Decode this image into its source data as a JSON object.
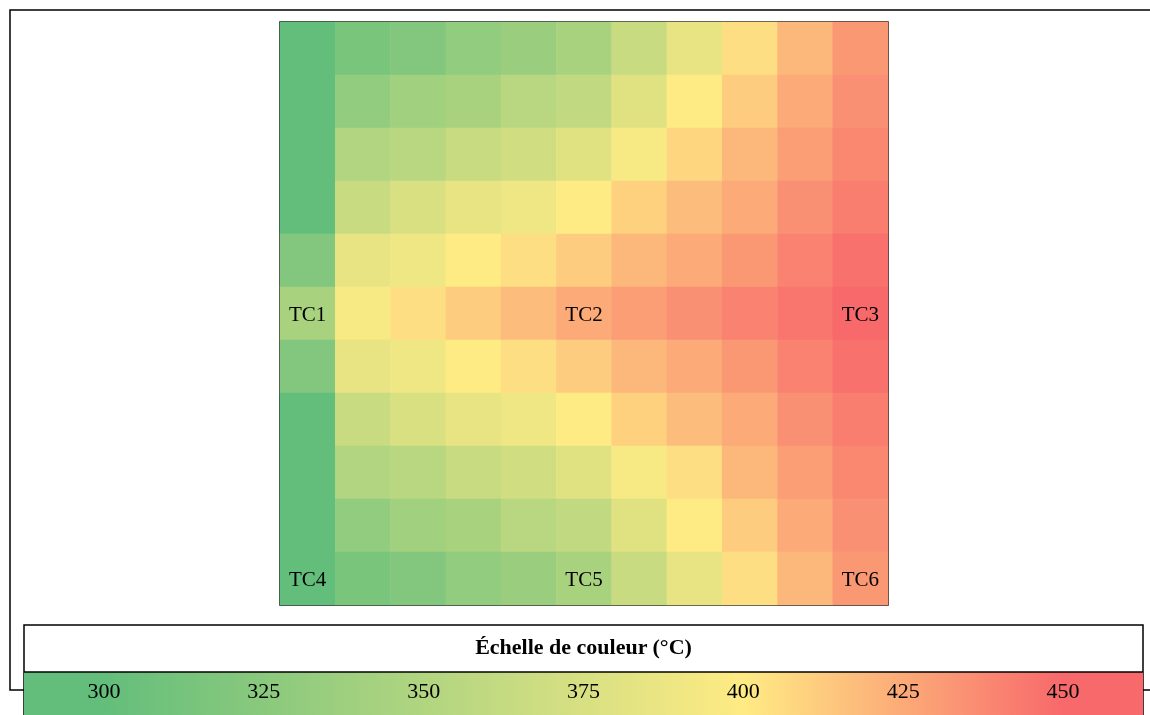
{
  "chart_data": {
    "type": "heatmap",
    "clabel": "Échelle de couleur (°C)",
    "categories": [
      null,
      null,
      null,
      null,
      null,
      null,
      null,
      null,
      null,
      null,
      null
    ],
    "y_categories": [
      null,
      null,
      null,
      null,
      null,
      null,
      null,
      null,
      null,
      null,
      null
    ],
    "cells": [
      [
        300,
        315,
        320,
        330,
        335,
        345,
        365,
        385,
        405,
        420,
        432
      ],
      [
        300,
        330,
        340,
        345,
        355,
        360,
        380,
        400,
        412,
        425,
        435
      ],
      [
        300,
        350,
        355,
        365,
        370,
        380,
        395,
        408,
        420,
        430,
        438
      ],
      [
        300,
        365,
        375,
        385,
        390,
        400,
        410,
        418,
        425,
        435,
        442
      ],
      [
        320,
        385,
        390,
        400,
        405,
        412,
        420,
        425,
        432,
        440,
        447
      ],
      [
        345,
        395,
        405,
        412,
        418,
        425,
        430,
        435,
        440,
        445,
        450
      ],
      [
        320,
        385,
        390,
        400,
        405,
        412,
        420,
        425,
        432,
        440,
        447
      ],
      [
        300,
        365,
        375,
        385,
        390,
        400,
        410,
        418,
        425,
        435,
        442
      ],
      [
        300,
        350,
        355,
        365,
        370,
        380,
        395,
        405,
        420,
        430,
        438
      ],
      [
        300,
        330,
        340,
        345,
        355,
        360,
        380,
        400,
        412,
        425,
        435
      ],
      [
        300,
        315,
        320,
        330,
        335,
        345,
        365,
        385,
        405,
        420,
        432
      ]
    ],
    "cell_labels": [
      [
        null,
        null,
        null,
        null,
        null,
        null,
        null,
        null,
        null,
        null,
        null
      ],
      [
        null,
        null,
        null,
        null,
        null,
        null,
        null,
        null,
        null,
        null,
        null
      ],
      [
        null,
        null,
        null,
        null,
        null,
        null,
        null,
        null,
        null,
        null,
        null
      ],
      [
        null,
        null,
        null,
        null,
        null,
        null,
        null,
        null,
        null,
        null,
        null
      ],
      [
        null,
        null,
        null,
        null,
        null,
        null,
        null,
        null,
        null,
        null,
        null
      ],
      [
        "TC1",
        null,
        null,
        null,
        null,
        "TC2",
        null,
        null,
        null,
        null,
        "TC3"
      ],
      [
        null,
        null,
        null,
        null,
        null,
        null,
        null,
        null,
        null,
        null,
        null
      ],
      [
        null,
        null,
        null,
        null,
        null,
        null,
        null,
        null,
        null,
        null,
        null
      ],
      [
        null,
        null,
        null,
        null,
        null,
        null,
        null,
        null,
        null,
        null,
        null
      ],
      [
        null,
        null,
        null,
        null,
        null,
        null,
        null,
        null,
        null,
        null,
        null
      ],
      [
        "TC4",
        null,
        null,
        null,
        null,
        "TC5",
        null,
        null,
        null,
        null,
        "TC6"
      ]
    ],
    "clim": [
      300,
      450
    ],
    "cticks": [
      300,
      325,
      350,
      375,
      400,
      425,
      450
    ]
  }
}
